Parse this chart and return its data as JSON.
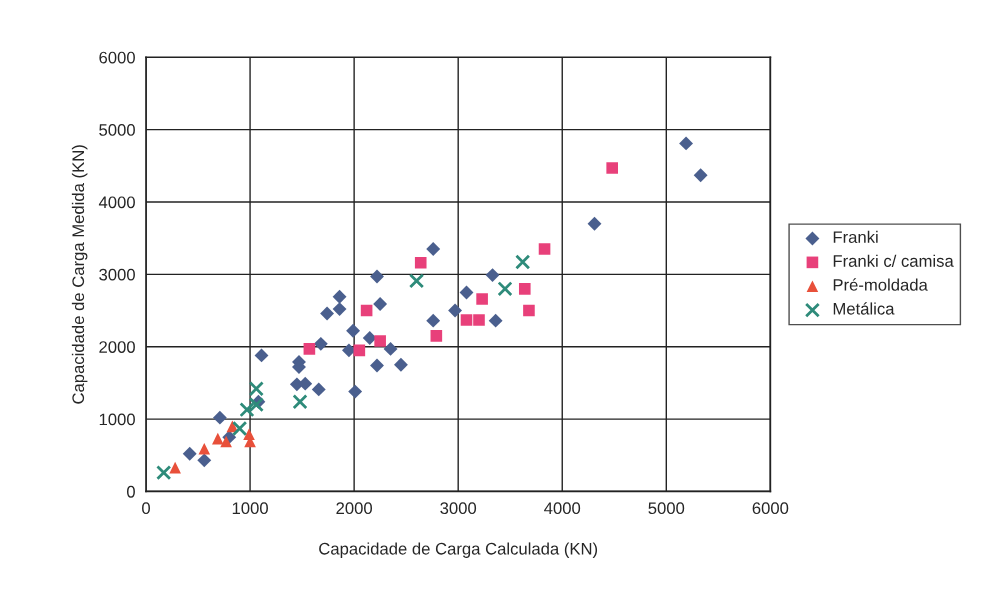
{
  "chart_data": {
    "type": "scatter",
    "xlabel": "Capacidade de Carga Calculada (KN)",
    "ylabel": "Capacidade de Carga Medida (KN)",
    "xlim": [
      0,
      6000
    ],
    "ylim": [
      0,
      6000
    ],
    "xticks": [
      0,
      1000,
      2000,
      3000,
      4000,
      5000,
      6000
    ],
    "yticks": [
      0,
      1000,
      2000,
      3000,
      4000,
      5000,
      6000
    ],
    "grid": true,
    "legend": "right",
    "series": [
      {
        "name": "Franki",
        "color": "#4a5f8e",
        "marker": "diamond",
        "x": [
          2760,
          2220,
          1860,
          1860,
          1740,
          2250,
          3080,
          2970,
          2760,
          1990,
          2150,
          1680,
          2350,
          1950,
          1110,
          1470,
          1470,
          2220,
          2450,
          1450,
          1530,
          1660,
          2010,
          1080,
          710,
          800,
          420,
          560,
          5190,
          5330,
          4310,
          3330,
          3360
        ],
        "values": [
          3350,
          2970,
          2690,
          2520,
          2460,
          2590,
          2750,
          2500,
          2360,
          2220,
          2120,
          2040,
          1970,
          1950,
          1880,
          1790,
          1720,
          1740,
          1750,
          1480,
          1490,
          1410,
          1380,
          1240,
          1020,
          750,
          520,
          430,
          4810,
          4370,
          3700,
          2990,
          2360
        ]
      },
      {
        "name": "Franki c/ camisa",
        "color": "#e8407a",
        "marker": "square",
        "x": [
          2640,
          2120,
          2250,
          2050,
          1570,
          2790,
          3080,
          3200,
          4480,
          3830,
          3640,
          3680,
          3230
        ],
        "values": [
          3160,
          2500,
          2080,
          1950,
          1970,
          2150,
          2370,
          2370,
          4470,
          3350,
          2800,
          2500,
          2660
        ]
      },
      {
        "name": "Pré-moldada",
        "color": "#e8503a",
        "marker": "triangle",
        "x": [
          280,
          560,
          690,
          770,
          830,
          990,
          1000
        ],
        "values": [
          330,
          590,
          730,
          690,
          900,
          790,
          690
        ]
      },
      {
        "name": "Metálica",
        "color": "#2e8b7a",
        "marker": "cross",
        "x": [
          170,
          900,
          970,
          1060,
          1060,
          1480,
          2600,
          3620,
          3450
        ],
        "values": [
          260,
          870,
          1130,
          1200,
          1420,
          1240,
          2910,
          3170,
          2800
        ]
      }
    ]
  }
}
